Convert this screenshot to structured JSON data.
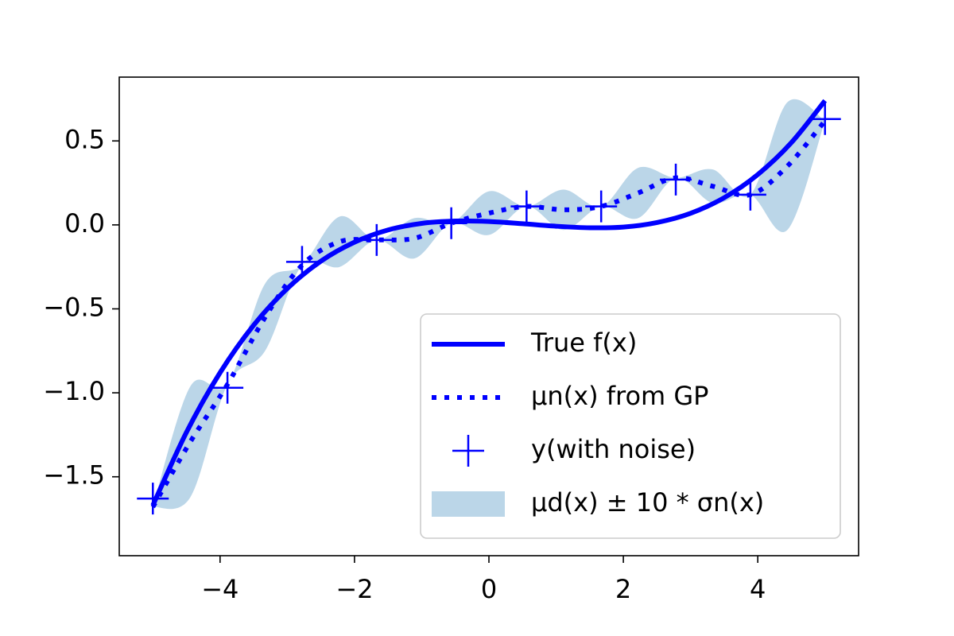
{
  "chart_data": {
    "type": "line",
    "xlim": [
      -5.5,
      5.5
    ],
    "ylim": [
      -1.97,
      0.88
    ],
    "xticks": [
      {
        "value": -4,
        "label": "−4"
      },
      {
        "value": -2,
        "label": "−2"
      },
      0,
      2,
      4
    ],
    "yticks": [
      {
        "value": -1.5,
        "label": "−1.5"
      },
      {
        "value": -1.0,
        "label": "−1.0"
      },
      {
        "value": -0.5,
        "label": "−0.5"
      },
      {
        "value": 0.0,
        "label": "0.0"
      },
      {
        "value": 0.5,
        "label": "0.5"
      }
    ],
    "legend": "lower right",
    "series": [
      {
        "name": "True f(x)",
        "kind": "line",
        "style": "solid",
        "color": "#0000ff",
        "x": [
          -5,
          -4.5,
          -4,
          -3.5,
          -3,
          -2.5,
          -2,
          -1.5,
          -1,
          -0.5,
          0,
          0.5,
          1,
          1.5,
          2,
          2.5,
          3,
          3.5,
          4,
          4.5,
          5
        ],
        "values": [
          -1.67,
          -1.235,
          -0.88,
          -0.597,
          -0.379,
          -0.216,
          -0.103,
          -0.03,
          0.009,
          0.023,
          0.02,
          0.007,
          -0.008,
          -0.017,
          -0.013,
          0.014,
          0.069,
          0.162,
          0.3,
          0.49,
          0.74
        ]
      },
      {
        "name": "μn(x) from GP",
        "kind": "line",
        "style": "dotted",
        "color": "#0000ff",
        "x": [
          -5,
          -4.44,
          -3.89,
          -3.33,
          -2.78,
          -2.22,
          -1.67,
          -1.11,
          -0.56,
          0,
          0.56,
          1.11,
          1.67,
          2.22,
          2.78,
          3.33,
          3.89,
          4.44,
          5
        ],
        "values": [
          -1.68,
          -1.29,
          -0.95,
          -0.55,
          -0.24,
          -0.1,
          -0.09,
          -0.08,
          0.01,
          0.07,
          0.11,
          0.09,
          0.11,
          0.19,
          0.28,
          0.23,
          0.18,
          0.35,
          0.62
        ]
      },
      {
        "name": "y(with noise)",
        "kind": "scatter",
        "marker": "+",
        "color": "#0000ff",
        "x": [
          -5,
          -3.89,
          -2.78,
          -1.67,
          -0.56,
          0.56,
          1.67,
          2.78,
          3.89,
          5
        ],
        "values": [
          -1.63,
          -0.97,
          -0.22,
          -0.09,
          0.01,
          0.11,
          0.11,
          0.27,
          0.18,
          0.63
        ]
      },
      {
        "name": "μd(x) ± 10 * σn(x)",
        "kind": "band",
        "color": "#1f77b4",
        "alpha": 0.3,
        "x": [
          -5,
          -4.44,
          -3.89,
          -3.33,
          -2.78,
          -2.22,
          -1.67,
          -1.11,
          -0.56,
          0,
          0.56,
          1.11,
          1.67,
          2.22,
          2.78,
          3.33,
          3.89,
          4.44,
          5
        ],
        "lower": [
          -1.68,
          -1.62,
          -0.95,
          -0.75,
          -0.24,
          -0.25,
          -0.09,
          -0.2,
          0.01,
          -0.06,
          0.11,
          -0.03,
          0.11,
          0.04,
          0.28,
          0.13,
          0.18,
          -0.03,
          0.62
        ],
        "upper": [
          -1.68,
          -0.96,
          -0.95,
          -0.35,
          -0.24,
          0.05,
          -0.09,
          0.04,
          0.01,
          0.2,
          0.11,
          0.21,
          0.11,
          0.34,
          0.28,
          0.33,
          0.18,
          0.73,
          0.62
        ]
      }
    ]
  }
}
